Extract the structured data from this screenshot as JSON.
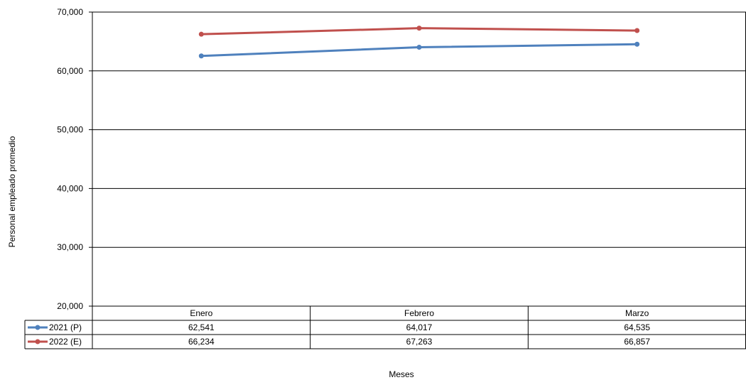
{
  "chart_data": {
    "type": "line",
    "title": "",
    "xlabel": "Meses",
    "ylabel": "Personal empleado  promedio",
    "ylim": [
      20000,
      70000
    ],
    "yticks": [
      "20,000",
      "30,000",
      "40,000",
      "50,000",
      "60,000",
      "70,000"
    ],
    "ytick_values": [
      20000,
      30000,
      40000,
      50000,
      60000,
      70000
    ],
    "grid": true,
    "legend": "data-table-left",
    "categories": [
      "Enero",
      "Febrero",
      "Marzo"
    ],
    "series": [
      {
        "name": "2021 (P)",
        "color": "#4F81BD",
        "values": [
          62541,
          64017,
          64535
        ],
        "labels": [
          "62,541",
          "64,017",
          "64,535"
        ]
      },
      {
        "name": "2022 (E)",
        "color": "#C0504D",
        "values": [
          66234,
          67263,
          66857
        ],
        "labels": [
          "66,234",
          "67,263",
          "66,857"
        ]
      }
    ]
  }
}
